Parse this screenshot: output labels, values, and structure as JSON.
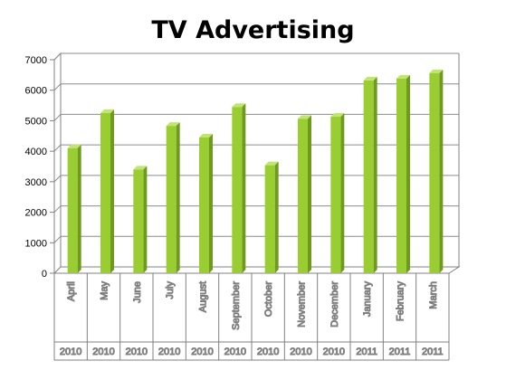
{
  "chart_data": {
    "type": "bar",
    "title": "TV Advertising",
    "xlabel": "",
    "ylabel": "",
    "ylim": [
      0,
      7000
    ],
    "yticks": [
      0,
      1000,
      2000,
      3000,
      4000,
      5000,
      6000,
      7000
    ],
    "grid": true,
    "legend": "none",
    "categories": [
      "April",
      "May",
      "June",
      "July",
      "August",
      "September",
      "October",
      "November",
      "December",
      "January",
      "February",
      "March"
    ],
    "years": [
      "2010",
      "2010",
      "2010",
      "2010",
      "2010",
      "2010",
      "2010",
      "2010",
      "2010",
      "2011",
      "2011",
      "2011"
    ],
    "values": [
      4100,
      5250,
      3400,
      4830,
      4450,
      5450,
      3540,
      5060,
      5130,
      6320,
      6380,
      6560
    ],
    "colors": {
      "bar_front": "#9ACD32",
      "bar_side": "#6E9A1E",
      "bar_top": "#C2E27A",
      "gridline": "#8c8c8c",
      "axis": "#808080"
    }
  }
}
